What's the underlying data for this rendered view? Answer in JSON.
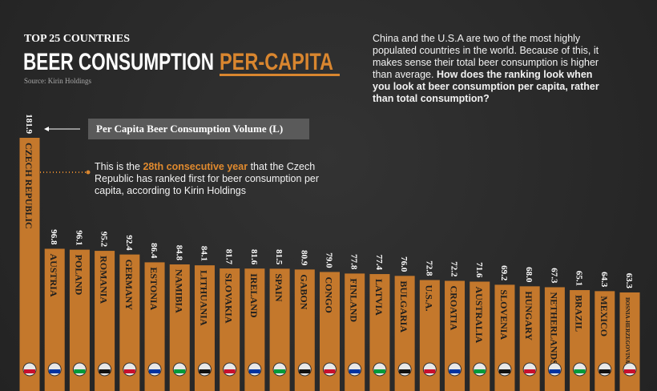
{
  "chart_data": {
    "type": "bar",
    "kicker": "TOP 25 COUNTRIES",
    "title": "BEER CONSUMPTION",
    "title_highlight": "PER-CAPITA",
    "source": "Source: Kirin Holdings",
    "intro": "China and the U.S.A are two of the most highly populated countries in the world. Because of this, it makes sense their total beer consumption is higher than average.",
    "intro_bold": "How does the ranking look when you look at beer consumption per capita, rather than total consumption?",
    "legend_label": "Per Capita Beer Consumption Volume (L)",
    "annotation": {
      "before": "This is the",
      "highlight": "28th consecutive year",
      "after": "that the Czech Republic has ranked first for beer consumption per capita, according to Kirin Holdings"
    },
    "categories": [
      "CZECH REPUBLIC",
      "AUSTRIA",
      "POLAND",
      "ROMANIA",
      "GERMANY",
      "ESTONIA",
      "NAMIBIA",
      "LITHUANIA",
      "SLOVAKIA",
      "IRELAND",
      "SPAIN",
      "GABON",
      "CONGO",
      "FINLAND",
      "LATVIA",
      "BULGARIA",
      "U.S.A.",
      "CROATIA",
      "AUSTRALIA",
      "SLOVENIA",
      "HUNGARY",
      "NETHERLANDS",
      "BRAZIL",
      "MEXICO",
      "BOSNIA-HERZEGOVINA"
    ],
    "values": [
      181.9,
      96.8,
      96.1,
      95.2,
      92.4,
      86.4,
      84.8,
      84.1,
      81.7,
      81.6,
      81.5,
      80.9,
      79.0,
      77.8,
      77.4,
      76.0,
      72.8,
      72.2,
      71.6,
      69.2,
      68.0,
      67.3,
      65.1,
      64.3,
      63.3
    ],
    "value_labels": [
      "181.9",
      "96.8",
      "96.1",
      "95.2",
      "92.4",
      "86.4",
      "84.8",
      "84.1",
      "81.7",
      "81.6",
      "81.5",
      "80.9",
      "79.0",
      "77.8",
      "77.4",
      "76.0",
      "72.8",
      "72.2",
      "71.6",
      "69.2",
      "68.0",
      "67.3",
      "65.1",
      "64.3",
      "63.3"
    ],
    "color": "#c4782c"
  }
}
